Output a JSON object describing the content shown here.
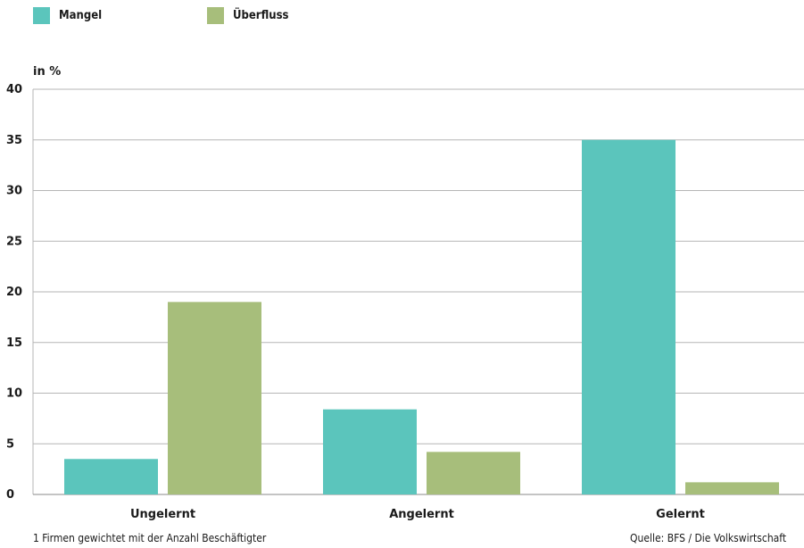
{
  "chart_data": {
    "type": "bar",
    "categories": [
      "Ungelernt",
      "Angelernt",
      "Gelernt"
    ],
    "series": [
      {
        "name": "Mangel",
        "values": [
          3.5,
          8.4,
          35.0
        ],
        "color": "#5bc5bc"
      },
      {
        "name": "Überfluss",
        "values": [
          19.0,
          4.2,
          1.2
        ],
        "color": "#a7be7b"
      }
    ],
    "ylabel": "in %",
    "ylim": [
      0,
      40
    ],
    "yticks": [
      0,
      5,
      10,
      15,
      20,
      25,
      30,
      35,
      40
    ],
    "grid": true,
    "legend_position": "top-left"
  },
  "footnote": "1 Firmen gewichtet mit der Anzahl Beschäftigter",
  "source": "Quelle: BFS / Die Volkswirtschaft"
}
